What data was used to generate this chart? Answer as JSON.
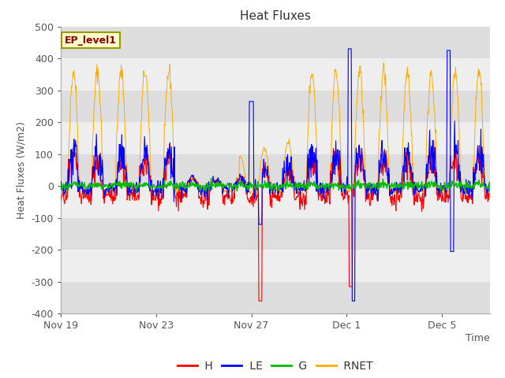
{
  "title": "Heat Fluxes",
  "xlabel": "Time",
  "ylabel": "Heat Fluxes (W/m2)",
  "ylim": [
    -400,
    500
  ],
  "yticks": [
    -400,
    -300,
    -200,
    -100,
    0,
    100,
    200,
    300,
    400,
    500
  ],
  "annotation_label": "EP_level1",
  "legend_entries": [
    "H",
    "LE",
    "G",
    "RNET"
  ],
  "line_colors": {
    "H": "#ff0000",
    "LE": "#0000ff",
    "G": "#00bb00",
    "RNET": "#ffaa00"
  },
  "background_color": "#ffffff",
  "plot_bg_light": "#eeeeee",
  "plot_bg_dark": "#dddddd",
  "title_color": "#333333",
  "axis_label_color": "#555555",
  "tick_label_color": "#555555",
  "xtick_labels": [
    "Nov 19",
    "Nov 23",
    "Nov 27",
    "Dec 1",
    "Dec 5"
  ],
  "n_days": 18,
  "seed": 42
}
